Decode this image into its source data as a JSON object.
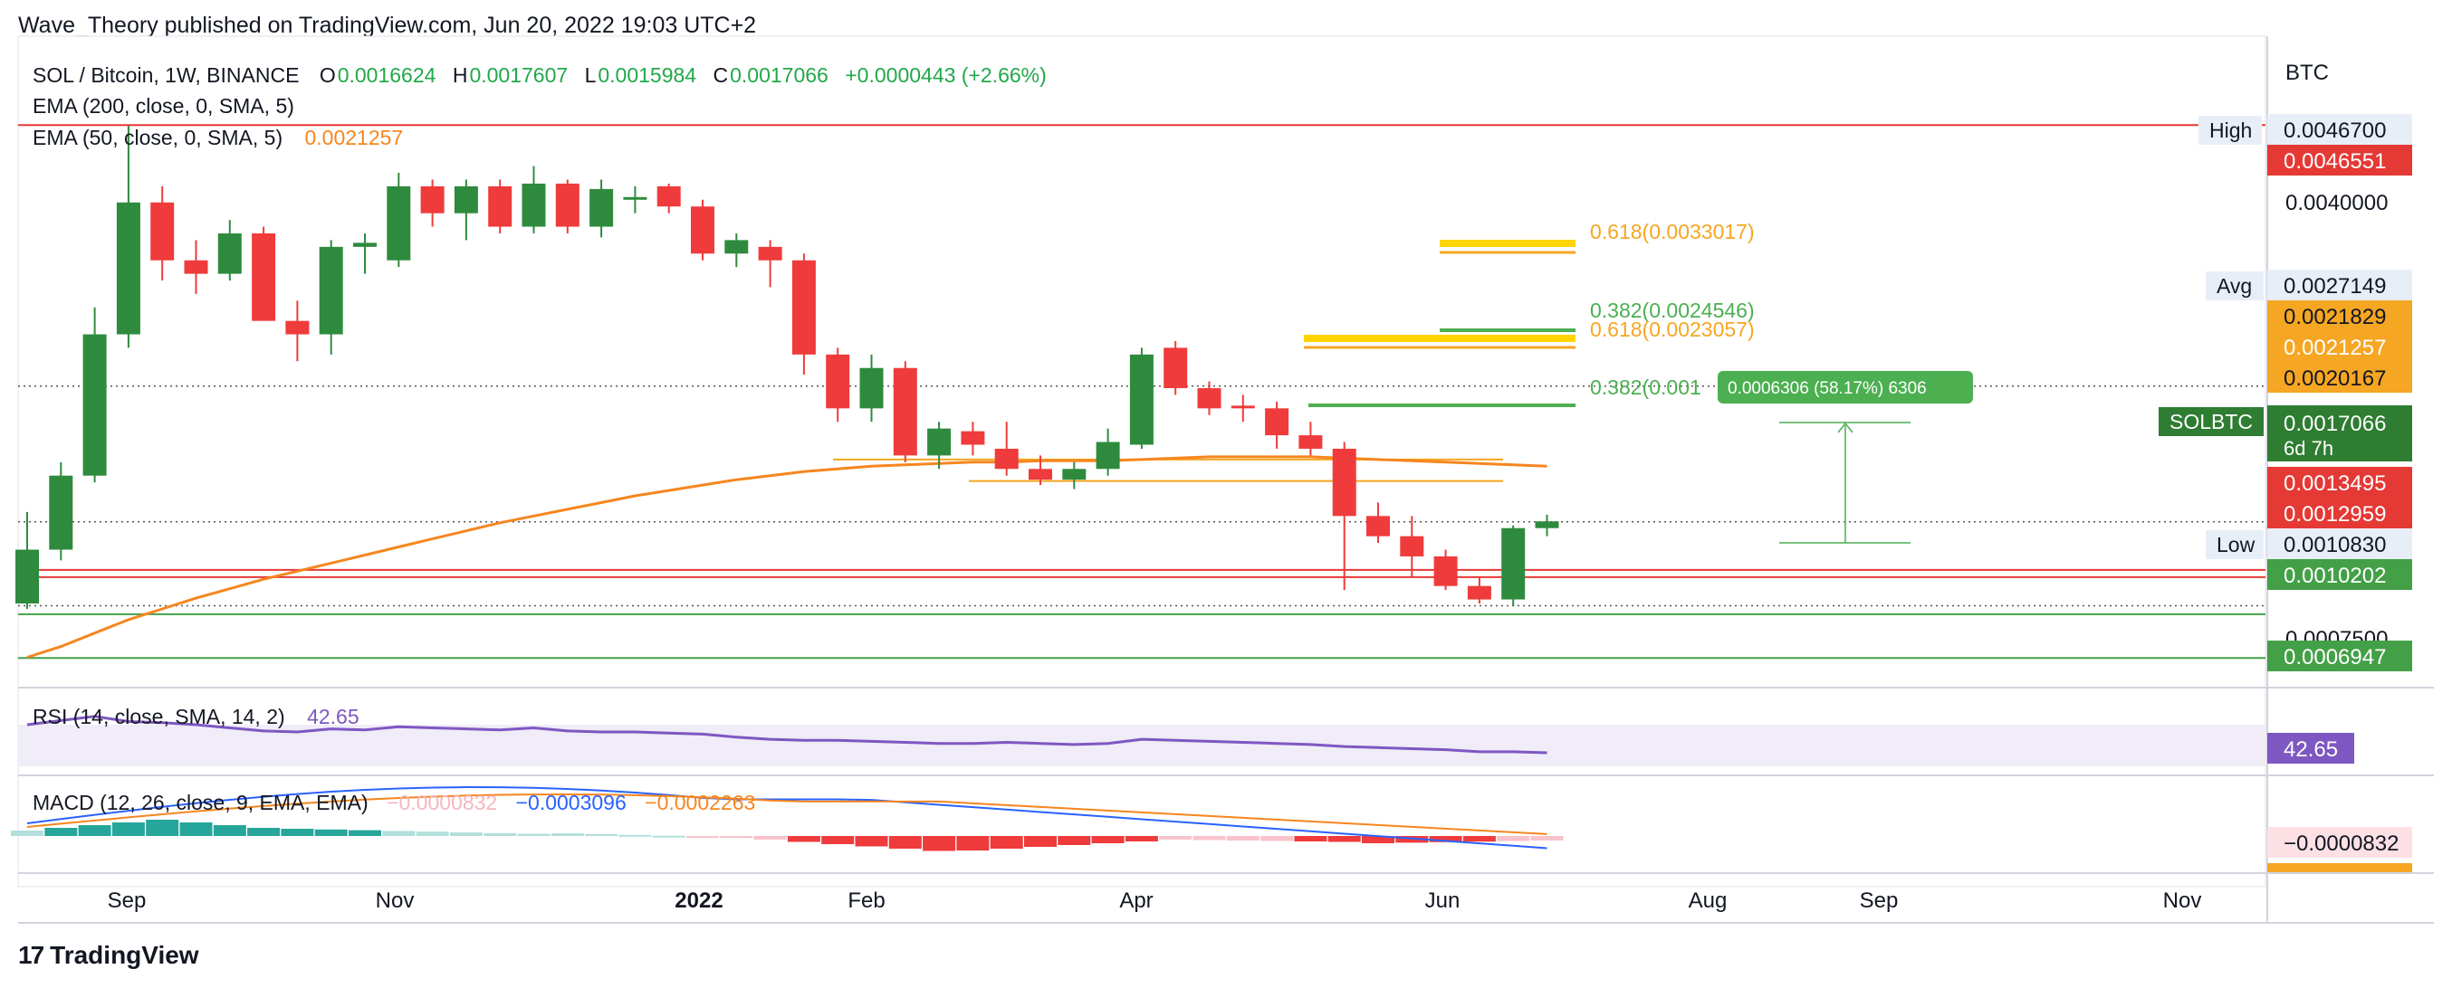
{
  "header": {
    "published": "Wave_Theory published on TradingView.com, Jun 20, 2022 19:03 UTC+2"
  },
  "legend": {
    "symbol": "SOL / Bitcoin, 1W, BINANCE",
    "o_label": "O",
    "o_value": "0.0016624",
    "h_label": "H",
    "h_value": "0.0017607",
    "l_label": "L",
    "l_value": "0.0015984",
    "c_label": "C",
    "c_value": "0.0017066",
    "change": "+0.0000443 (+2.66%)",
    "ema200": "EMA (200, close, 0, SMA, 5)",
    "ema50": "EMA (50, close, 0, SMA, 5)",
    "ema50_value": "0.0021257"
  },
  "brand": "TradingView",
  "colors": {
    "up": "#2e8b3e",
    "down": "#ef3b3b",
    "ema50": "#f5861f",
    "rsi": "#7e57c2",
    "macd": "#2962ff",
    "signal": "#f5861f",
    "hist_pos_strong": "#26a69a",
    "hist_pos_weak": "#b2dfdb",
    "hist_neg_strong": "#ef3b3b",
    "hist_neg_weak": "#f8c3cb",
    "fib_green": "#4caf50",
    "fib_yellow": "#ffd400",
    "fib_orange": "#f5a623",
    "level_red": "#e53935",
    "level_green": "#43a047"
  },
  "chart_data": {
    "type": "candlestick",
    "timeframe": "1W",
    "price_axis_unit": "BTC",
    "price_ticks": [
      0.00467,
      0.004,
      0.0033,
      0.0027149,
      0.0021829,
      0.0021257,
      0.0020167,
      0.0017066,
      0.0013495,
      0.0012959,
      0.001083,
      0.0010202,
      0.00075,
      0.0006947
    ],
    "x_tick_labels": [
      "Sep",
      "Nov",
      "2022",
      "Feb",
      "Apr",
      "Jun",
      "Aug",
      "Sep",
      "Nov"
    ],
    "ohlc": [
      {
        "o": 0.0011,
        "h": 0.00178,
        "l": 0.00106,
        "c": 0.0015
      },
      {
        "o": 0.0015,
        "h": 0.00215,
        "l": 0.00142,
        "c": 0.00205
      },
      {
        "o": 0.00205,
        "h": 0.0033,
        "l": 0.002,
        "c": 0.0031
      },
      {
        "o": 0.0031,
        "h": 0.00465,
        "l": 0.003,
        "c": 0.00408
      },
      {
        "o": 0.00408,
        "h": 0.0042,
        "l": 0.0035,
        "c": 0.00365
      },
      {
        "o": 0.00365,
        "h": 0.0038,
        "l": 0.0034,
        "c": 0.00355
      },
      {
        "o": 0.00355,
        "h": 0.00395,
        "l": 0.0035,
        "c": 0.00385
      },
      {
        "o": 0.00385,
        "h": 0.0039,
        "l": 0.0032,
        "c": 0.0032
      },
      {
        "o": 0.0032,
        "h": 0.00335,
        "l": 0.0029,
        "c": 0.0031
      },
      {
        "o": 0.0031,
        "h": 0.0038,
        "l": 0.00295,
        "c": 0.00375
      },
      {
        "o": 0.00375,
        "h": 0.00385,
        "l": 0.00355,
        "c": 0.00378
      },
      {
        "o": 0.00365,
        "h": 0.0043,
        "l": 0.0036,
        "c": 0.0042
      },
      {
        "o": 0.0042,
        "h": 0.00425,
        "l": 0.0039,
        "c": 0.004
      },
      {
        "o": 0.004,
        "h": 0.00425,
        "l": 0.0038,
        "c": 0.0042
      },
      {
        "o": 0.0042,
        "h": 0.00425,
        "l": 0.00385,
        "c": 0.0039
      },
      {
        "o": 0.0039,
        "h": 0.00435,
        "l": 0.00385,
        "c": 0.00422
      },
      {
        "o": 0.00422,
        "h": 0.00425,
        "l": 0.00385,
        "c": 0.0039
      },
      {
        "o": 0.0039,
        "h": 0.00425,
        "l": 0.00382,
        "c": 0.00418
      },
      {
        "o": 0.0041,
        "h": 0.0042,
        "l": 0.004,
        "c": 0.00412
      },
      {
        "o": 0.0042,
        "h": 0.00422,
        "l": 0.004,
        "c": 0.00405
      },
      {
        "o": 0.00405,
        "h": 0.0041,
        "l": 0.00365,
        "c": 0.0037
      },
      {
        "o": 0.0037,
        "h": 0.00385,
        "l": 0.0036,
        "c": 0.0038
      },
      {
        "o": 0.00375,
        "h": 0.0038,
        "l": 0.00345,
        "c": 0.00365
      },
      {
        "o": 0.00365,
        "h": 0.0037,
        "l": 0.0028,
        "c": 0.00295
      },
      {
        "o": 0.00295,
        "h": 0.003,
        "l": 0.00245,
        "c": 0.00255
      },
      {
        "o": 0.00255,
        "h": 0.00295,
        "l": 0.00245,
        "c": 0.00285
      },
      {
        "o": 0.00285,
        "h": 0.0029,
        "l": 0.00215,
        "c": 0.0022
      },
      {
        "o": 0.0022,
        "h": 0.00245,
        "l": 0.0021,
        "c": 0.0024
      },
      {
        "o": 0.00238,
        "h": 0.00245,
        "l": 0.0022,
        "c": 0.00228
      },
      {
        "o": 0.00225,
        "h": 0.00245,
        "l": 0.00205,
        "c": 0.0021
      },
      {
        "o": 0.0021,
        "h": 0.0022,
        "l": 0.00198,
        "c": 0.00202
      },
      {
        "o": 0.00202,
        "h": 0.00215,
        "l": 0.00195,
        "c": 0.0021
      },
      {
        "o": 0.0021,
        "h": 0.0024,
        "l": 0.00205,
        "c": 0.0023
      },
      {
        "o": 0.00228,
        "h": 0.003,
        "l": 0.00225,
        "c": 0.00295
      },
      {
        "o": 0.003,
        "h": 0.00305,
        "l": 0.00265,
        "c": 0.0027
      },
      {
        "o": 0.0027,
        "h": 0.00275,
        "l": 0.0025,
        "c": 0.00255
      },
      {
        "o": 0.00257,
        "h": 0.00265,
        "l": 0.00245,
        "c": 0.00255
      },
      {
        "o": 0.00255,
        "h": 0.0026,
        "l": 0.00225,
        "c": 0.00235
      },
      {
        "o": 0.00235,
        "h": 0.00245,
        "l": 0.0022,
        "c": 0.00225
      },
      {
        "o": 0.00225,
        "h": 0.0023,
        "l": 0.0012,
        "c": 0.00175
      },
      {
        "o": 0.00175,
        "h": 0.00185,
        "l": 0.00155,
        "c": 0.0016
      },
      {
        "o": 0.0016,
        "h": 0.00175,
        "l": 0.0013,
        "c": 0.00145
      },
      {
        "o": 0.00145,
        "h": 0.0015,
        "l": 0.0012,
        "c": 0.00123
      },
      {
        "o": 0.00123,
        "h": 0.0013,
        "l": 0.0011,
        "c": 0.00113
      },
      {
        "o": 0.00113,
        "h": 0.00168,
        "l": 0.00108,
        "c": 0.00166
      },
      {
        "o": 0.00166,
        "h": 0.00176,
        "l": 0.0016,
        "c": 0.00171
      }
    ],
    "ema50": [
      0.0007,
      0.00078,
      0.00088,
      0.00098,
      0.00106,
      0.00114,
      0.00121,
      0.00128,
      0.00134,
      0.0014,
      0.00146,
      0.00152,
      0.00158,
      0.00164,
      0.0017,
      0.00175,
      0.0018,
      0.00185,
      0.0019,
      0.00194,
      0.00198,
      0.00202,
      0.00205,
      0.00208,
      0.0021,
      0.00212,
      0.00213,
      0.00214,
      0.00215,
      0.00215,
      0.00216,
      0.00216,
      0.00216,
      0.00217,
      0.00218,
      0.00219,
      0.00219,
      0.00219,
      0.00219,
      0.00218,
      0.00217,
      0.00216,
      0.00215,
      0.00214,
      0.00213,
      0.00212
    ],
    "horizontal_levels": [
      {
        "value": 0.0046551,
        "label": "0.0046551",
        "color": "red"
      },
      {
        "value": 0.0027149,
        "label": "0.0027149",
        "style": "dotted"
      },
      {
        "value": 0.0017066,
        "label": "0.0017066",
        "style": "dotted"
      },
      {
        "value": 0.0013495,
        "label": "0.0013495",
        "color": "red"
      },
      {
        "value": 0.0012959,
        "label": "0.0012959",
        "color": "red"
      },
      {
        "value": 0.001083,
        "label": "0.0010830",
        "style": "dotted"
      },
      {
        "value": 0.0010202,
        "label": "0.0010202",
        "color": "green"
      },
      {
        "value": 0.0006947,
        "label": "0.0006947",
        "color": "green"
      }
    ],
    "fib_labels": [
      {
        "text": "0.618(0.0033017)",
        "price": 0.0033017,
        "color": "orange"
      },
      {
        "text": "0.382(0.0024546)",
        "price": 0.0024546,
        "color": "green"
      },
      {
        "text": "0.618(0.0023057)",
        "price": 0.0023057,
        "color": "orange"
      },
      {
        "text": "0.382(0.001",
        "price": 0.00195,
        "color": "green"
      }
    ],
    "measure_label": "0.0006306 (58.17%) 6306",
    "axis_labels": {
      "unit": "BTC",
      "high_tag": "High",
      "high_value": "0.0046700",
      "avg_tag": "Avg",
      "avg_value": "0.0027149",
      "low_tag": "Low",
      "low_value": "0.0010830",
      "symbol_tag": "SOLBTC",
      "symbol_value": "0.0017066",
      "countdown": "6d 7h",
      "tick_0040000": "0.0040000",
      "tick_0007500": "0.0007500",
      "red_top": "0.0046551",
      "orange_1": "0.0021829",
      "orange_2": "0.0021257",
      "orange_3": "0.0020167",
      "red_1": "0.0013495",
      "red_2": "0.0012959",
      "green_1": "0.0010202",
      "green_2": "0.0006947"
    },
    "rsi": {
      "label": "RSI (14, close, SMA, 14, 2)",
      "value": "42.65",
      "values": [
        70,
        74,
        78,
        73,
        72,
        70,
        67,
        64,
        63,
        66,
        65,
        68,
        67,
        66,
        65,
        67,
        64,
        63,
        63,
        62,
        61,
        58,
        56,
        55,
        55,
        54,
        53,
        52,
        52,
        53,
        52,
        51,
        52,
        56,
        55,
        54,
        53,
        52,
        51,
        49,
        48,
        47,
        46,
        44,
        44,
        43
      ],
      "band": [
        30,
        70
      ]
    },
    "macd": {
      "label": "MACD (12, 26, close, 9, EMA, EMA)",
      "hist_value": "−0.0000832",
      "macd_value": "−0.0003096",
      "signal_value": "−0.0002263",
      "axis_value": "−0.0000832"
    }
  }
}
